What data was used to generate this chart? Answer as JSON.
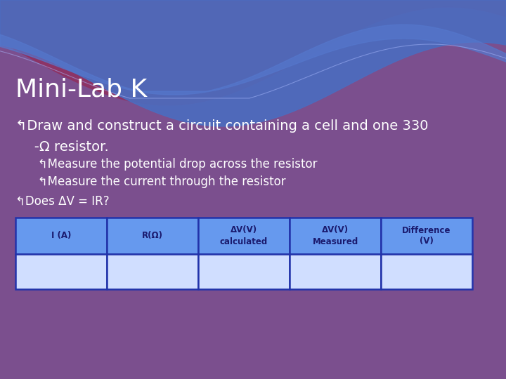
{
  "title": "Mini-Lab K",
  "title_fontsize": 26,
  "title_color": "#FFFFFF",
  "bg_color": "#7B4F8E",
  "bullet_color": "#FFFFFF",
  "bullet_lines": [
    "↰Draw and construct a circuit containing a cell and one 330",
    "   -Ω resistor.",
    "   ↰Measure the potential drop across the resistor",
    "   ↰Measure the current through the resistor",
    "↰Does ΔV = IR?"
  ],
  "bullet_fontsizes": [
    14,
    14,
    12,
    12,
    12
  ],
  "table_headers": [
    "I (A)",
    "R(Ω)",
    "ΔV(V)\ncalculated",
    "ΔV(V)\nMeasured",
    "Difference\n(V)"
  ],
  "table_header_color": "#6699EE",
  "table_row_color": "#D0DEFF",
  "table_border_color": "#2233AA",
  "table_header_text_color": "#1A1A6E",
  "wave_blue1": "#4B6DC0",
  "wave_blue2": "#5577CC",
  "wave_pink": "#903060"
}
